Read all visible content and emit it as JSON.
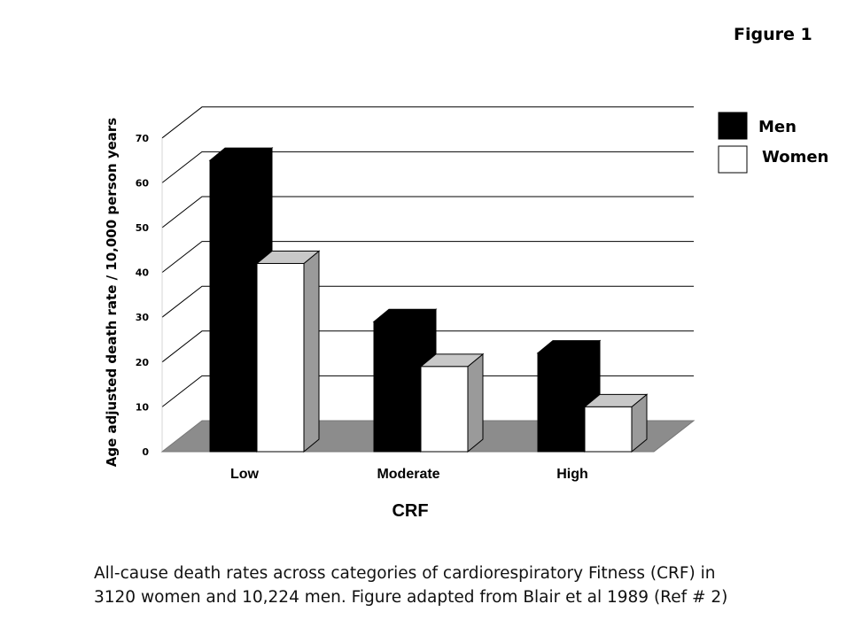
{
  "figure_label": "Figure 1",
  "caption": {
    "line1": "All-cause death rates across categories of cardiorespiratory Fitness (CRF) in",
    "line2": "3120 women and 10,224 men.  Figure adapted from Blair et al 1989 (Ref # 2)"
  },
  "colors": {
    "men": "#000000",
    "women": "#ffffff",
    "floor": "#8c8c8c",
    "side": "#9a9a9a"
  },
  "chart_data": {
    "type": "bar",
    "title": "",
    "xlabel": "CRF",
    "ylabel": "Age adjusted  death rate / 10,000 person years",
    "categories": [
      "Low",
      "Moderate",
      "High"
    ],
    "series": [
      {
        "name": "Men",
        "values": [
          65,
          29,
          22
        ]
      },
      {
        "name": "Women",
        "values": [
          42,
          19,
          10
        ]
      }
    ],
    "ylim": [
      0,
      70
    ],
    "yticks": [
      0,
      10,
      20,
      30,
      40,
      50,
      60,
      70
    ],
    "grid": true,
    "legend_position": "top-right",
    "three_d": true
  }
}
